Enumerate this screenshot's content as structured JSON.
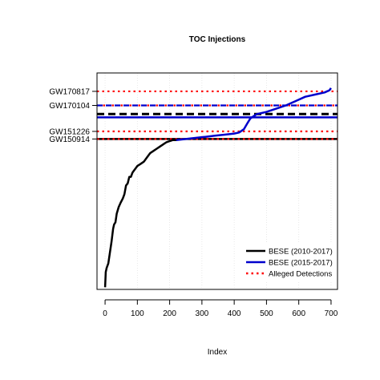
{
  "chart_data": {
    "type": "line",
    "title": "TOC Injections",
    "xlabel": "Index",
    "ylabel": "",
    "xlim": [
      -25,
      720
    ],
    "ylim": [
      0,
      100
    ],
    "x_ticks": [
      0,
      100,
      200,
      300,
      400,
      500,
      600,
      700
    ],
    "grid": true,
    "legend_position": "bottom-right",
    "series": [
      {
        "name": "BESE (2010-2017)",
        "color": "#000000",
        "x": [
          0,
          2,
          5,
          10,
          15,
          20,
          25,
          28,
          32,
          36,
          42,
          48,
          55,
          60,
          65,
          70,
          75,
          80,
          85,
          90,
          100,
          110,
          120,
          130,
          140,
          150,
          160,
          170,
          180,
          190,
          200,
          210,
          220,
          230
        ],
        "values": [
          1,
          8,
          10,
          12,
          17,
          22,
          28,
          30,
          31,
          35,
          38,
          40,
          42,
          44,
          48,
          49,
          52,
          52,
          54,
          55,
          57,
          58,
          59,
          61,
          63,
          64,
          65,
          66,
          67,
          68,
          68.5,
          69,
          69,
          69.5
        ]
      },
      {
        "name": "BESE (2015-2017)",
        "color": "#0000cc",
        "x": [
          220,
          250,
          280,
          310,
          340,
          370,
          400,
          415,
          430,
          440,
          450,
          470,
          500,
          530,
          560,
          590,
          620,
          650,
          680,
          695,
          700
        ],
        "values": [
          69,
          69.5,
          70,
          70.5,
          71,
          71.5,
          72,
          72.5,
          74,
          76.5,
          79,
          81,
          82,
          83.5,
          85,
          87,
          89,
          90,
          91,
          92,
          93
        ]
      },
      {
        "name": "Alleged Detections",
        "color": "#ff0000"
      }
    ],
    "reference_lines": [
      {
        "label": "GW170817",
        "value": 91.5,
        "style": "dotted-red"
      },
      {
        "label": "GW170104",
        "value": 85,
        "style": "dashed-blue-red"
      },
      {
        "label": "",
        "value": 81,
        "style": "dashed-black"
      },
      {
        "label": "",
        "value": 79.5,
        "style": "solid-blue"
      },
      {
        "label": "GW151226",
        "value": 73,
        "style": "dotted-red"
      },
      {
        "label": "GW150914",
        "value": 69.5,
        "style": "solid-black-dotted-red"
      }
    ]
  }
}
